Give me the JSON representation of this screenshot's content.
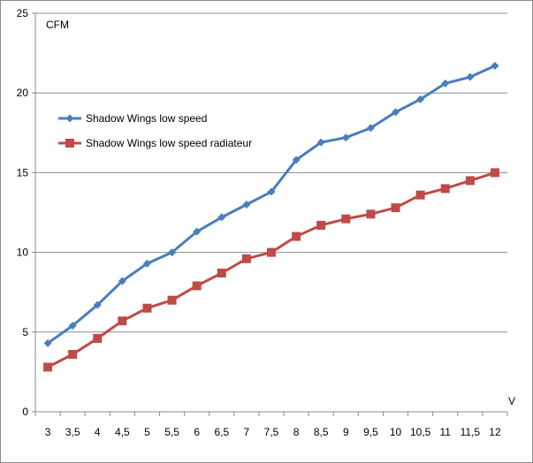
{
  "chart_data": {
    "type": "line",
    "title": "",
    "ylabel": "CFM",
    "xlabel": "V",
    "ylim": [
      0,
      25
    ],
    "yticks": [
      0,
      5,
      10,
      15,
      20,
      25
    ],
    "grid": "horizontal",
    "legend_position": "upper-left",
    "categories": [
      "3",
      "3,5",
      "4",
      "4,5",
      "5",
      "5,5",
      "6",
      "6,5",
      "7",
      "7,5",
      "8",
      "8,5",
      "9",
      "9,5",
      "10",
      "10,5",
      "11",
      "11,5",
      "12"
    ],
    "series": [
      {
        "name": "Shadow Wings low speed",
        "color": "#4a7ebb",
        "marker": "diamond",
        "values": [
          4.3,
          5.4,
          6.7,
          8.2,
          9.3,
          10.0,
          11.3,
          12.2,
          13.0,
          13.8,
          15.8,
          16.9,
          17.2,
          17.8,
          18.8,
          19.6,
          20.6,
          21.0,
          21.7
        ]
      },
      {
        "name": "Shadow Wings low speed radiateur",
        "color": "#be4b48",
        "marker": "square",
        "values": [
          2.8,
          3.6,
          4.6,
          5.7,
          6.5,
          7.0,
          7.9,
          8.7,
          9.6,
          10.0,
          11.0,
          11.7,
          12.1,
          12.4,
          12.8,
          13.6,
          14.0,
          14.5,
          15.0
        ]
      }
    ]
  }
}
